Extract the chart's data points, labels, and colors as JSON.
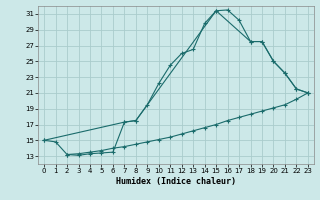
{
  "xlabel": "Humidex (Indice chaleur)",
  "background_color": "#cce8e8",
  "grid_color": "#aacccc",
  "line_color": "#1a6b6b",
  "xlim": [
    -0.5,
    23.5
  ],
  "ylim": [
    12,
    32
  ],
  "yticks": [
    13,
    15,
    17,
    19,
    21,
    23,
    25,
    27,
    29,
    31
  ],
  "xticks": [
    0,
    1,
    2,
    3,
    4,
    5,
    6,
    7,
    8,
    9,
    10,
    11,
    12,
    13,
    14,
    15,
    16,
    17,
    18,
    19,
    20,
    21,
    22,
    23
  ],
  "line1_x": [
    0,
    1,
    2,
    3,
    4,
    5,
    6,
    7,
    8,
    9,
    10,
    11,
    12,
    13,
    14,
    15,
    16,
    17,
    18,
    19,
    20,
    21,
    22,
    23
  ],
  "line1_y": [
    15,
    14.8,
    13.2,
    13.1,
    13.3,
    13.4,
    13.5,
    17.3,
    17.5,
    19.5,
    22.2,
    24.5,
    26.0,
    26.5,
    29.8,
    31.4,
    31.5,
    30.2,
    27.5,
    27.5,
    25.0,
    23.5,
    21.5,
    21.0
  ],
  "line2_x": [
    0,
    7,
    8,
    15,
    18,
    19,
    20,
    21,
    22,
    23
  ],
  "line2_y": [
    15,
    17.3,
    17.5,
    31.4,
    27.5,
    27.5,
    25.0,
    23.5,
    21.5,
    21.0
  ],
  "line3_x": [
    2,
    3,
    4,
    5,
    6,
    7,
    8,
    9,
    10,
    11,
    12,
    13,
    14,
    15,
    16,
    17,
    18,
    19,
    20,
    21,
    22,
    23
  ],
  "line3_y": [
    13.2,
    13.3,
    13.5,
    13.7,
    14.0,
    14.2,
    14.5,
    14.8,
    15.1,
    15.4,
    15.8,
    16.2,
    16.6,
    17.0,
    17.5,
    17.9,
    18.3,
    18.7,
    19.1,
    19.5,
    20.2,
    21.0
  ]
}
